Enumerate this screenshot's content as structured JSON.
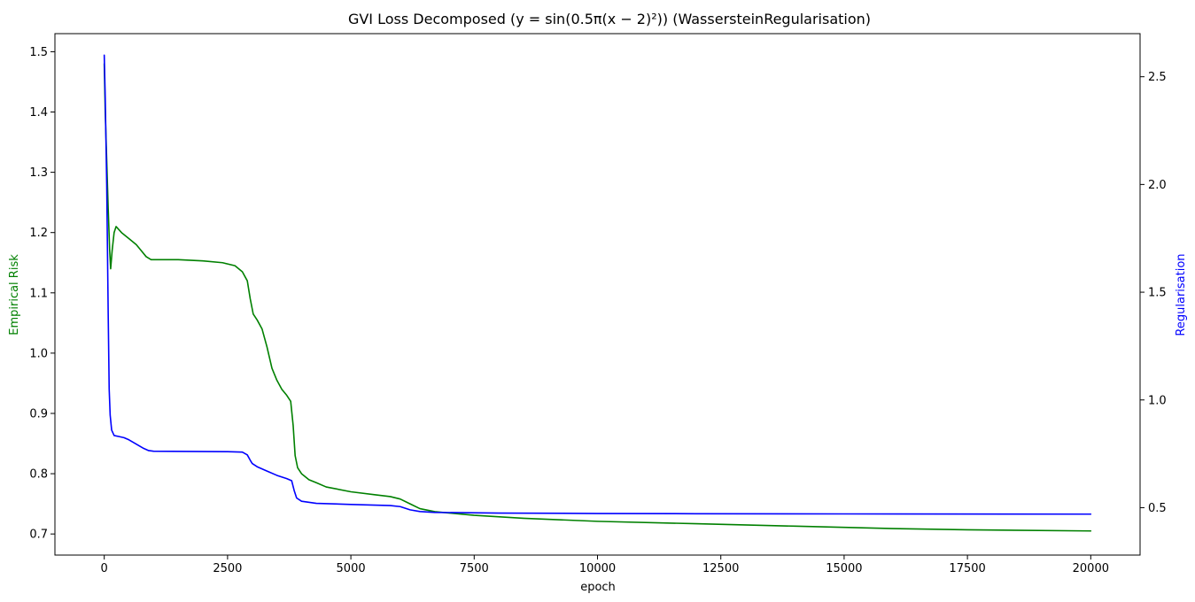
{
  "chart_data": {
    "type": "line",
    "title": "GVI Loss Decomposed (y = sin(0.5π(x − 2)²)) (WassersteinRegularisation)",
    "xlabel": "epoch",
    "ylabel_left": "Empirical Risk",
    "ylabel_right": "Regularisation",
    "xlim": [
      -1000,
      21000
    ],
    "ylim_left": [
      0.665,
      1.53
    ],
    "ylim_right": [
      0.28,
      2.7
    ],
    "xticks": [
      "0",
      "2500",
      "5000",
      "7500",
      "10000",
      "12500",
      "15000",
      "17500",
      "20000"
    ],
    "xtick_values": [
      0,
      2500,
      5000,
      7500,
      10000,
      12500,
      15000,
      17500,
      20000
    ],
    "yticks_left": [
      "0.7",
      "0.8",
      "0.9",
      "1.0",
      "1.1",
      "1.2",
      "1.3",
      "1.4",
      "1.5"
    ],
    "ytick_values_left": [
      0.7,
      0.8,
      0.9,
      1.0,
      1.1,
      1.2,
      1.3,
      1.4,
      1.5
    ],
    "yticks_right": [
      "0.5",
      "1.0",
      "1.5",
      "2.0",
      "2.5"
    ],
    "ytick_values_right": [
      0.5,
      1.0,
      1.5,
      2.0,
      2.5
    ],
    "grid": false,
    "legend": "none",
    "series": [
      {
        "name": "Empirical Risk",
        "axis": "left",
        "color": "#008000",
        "points": [
          [
            0,
            1.48
          ],
          [
            20,
            1.4
          ],
          [
            50,
            1.32
          ],
          [
            80,
            1.24
          ],
          [
            110,
            1.17
          ],
          [
            130,
            1.14
          ],
          [
            160,
            1.17
          ],
          [
            200,
            1.2
          ],
          [
            240,
            1.21
          ],
          [
            350,
            1.2
          ],
          [
            500,
            1.19
          ],
          [
            650,
            1.18
          ],
          [
            750,
            1.17
          ],
          [
            850,
            1.16
          ],
          [
            950,
            1.155
          ],
          [
            1500,
            1.155
          ],
          [
            2000,
            1.153
          ],
          [
            2400,
            1.15
          ],
          [
            2650,
            1.145
          ],
          [
            2800,
            1.135
          ],
          [
            2900,
            1.12
          ],
          [
            2960,
            1.09
          ],
          [
            3020,
            1.065
          ],
          [
            3100,
            1.055
          ],
          [
            3200,
            1.04
          ],
          [
            3300,
            1.01
          ],
          [
            3400,
            0.975
          ],
          [
            3500,
            0.955
          ],
          [
            3600,
            0.94
          ],
          [
            3700,
            0.93
          ],
          [
            3780,
            0.92
          ],
          [
            3830,
            0.88
          ],
          [
            3870,
            0.83
          ],
          [
            3920,
            0.81
          ],
          [
            4000,
            0.8
          ],
          [
            4150,
            0.79
          ],
          [
            4300,
            0.785
          ],
          [
            4500,
            0.778
          ],
          [
            5000,
            0.77
          ],
          [
            5500,
            0.765
          ],
          [
            5800,
            0.762
          ],
          [
            6000,
            0.758
          ],
          [
            6200,
            0.75
          ],
          [
            6400,
            0.742
          ],
          [
            6700,
            0.737
          ],
          [
            7500,
            0.731
          ],
          [
            8500,
            0.726
          ],
          [
            10000,
            0.721
          ],
          [
            12000,
            0.717
          ],
          [
            14000,
            0.713
          ],
          [
            16000,
            0.709
          ],
          [
            17500,
            0.707
          ],
          [
            20000,
            0.705
          ]
        ]
      },
      {
        "name": "Regularisation",
        "axis": "right",
        "color": "#0000ff",
        "points": [
          [
            0,
            2.6
          ],
          [
            20,
            2.4
          ],
          [
            50,
            2.0
          ],
          [
            80,
            1.4
          ],
          [
            100,
            1.05
          ],
          [
            120,
            0.93
          ],
          [
            150,
            0.86
          ],
          [
            200,
            0.835
          ],
          [
            300,
            0.83
          ],
          [
            400,
            0.825
          ],
          [
            500,
            0.815
          ],
          [
            650,
            0.795
          ],
          [
            800,
            0.775
          ],
          [
            900,
            0.765
          ],
          [
            1000,
            0.762
          ],
          [
            2500,
            0.76
          ],
          [
            2800,
            0.758
          ],
          [
            2900,
            0.745
          ],
          [
            2960,
            0.72
          ],
          [
            3000,
            0.705
          ],
          [
            3100,
            0.69
          ],
          [
            3300,
            0.67
          ],
          [
            3500,
            0.65
          ],
          [
            3700,
            0.635
          ],
          [
            3800,
            0.625
          ],
          [
            3850,
            0.58
          ],
          [
            3900,
            0.545
          ],
          [
            4000,
            0.53
          ],
          [
            4300,
            0.52
          ],
          [
            5000,
            0.515
          ],
          [
            5800,
            0.51
          ],
          [
            6000,
            0.505
          ],
          [
            6200,
            0.49
          ],
          [
            6400,
            0.482
          ],
          [
            6700,
            0.478
          ],
          [
            8000,
            0.475
          ],
          [
            10000,
            0.473
          ],
          [
            12000,
            0.472
          ],
          [
            15000,
            0.471
          ],
          [
            20000,
            0.47
          ]
        ]
      }
    ]
  }
}
